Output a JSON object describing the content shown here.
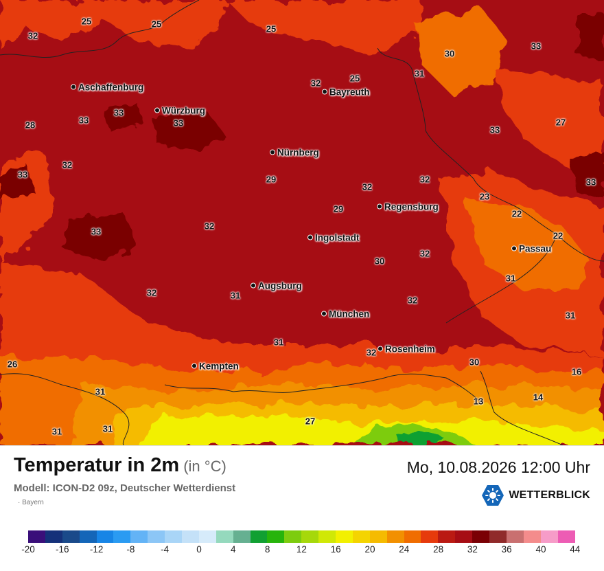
{
  "map": {
    "region": "Bayern",
    "cities": [
      {
        "name": "Aschaffenburg"
      },
      {
        "name": "Würzburg"
      },
      {
        "name": "Bayreuth"
      },
      {
        "name": "Nürnberg"
      },
      {
        "name": "Regensburg"
      },
      {
        "name": "Ingolstadt"
      },
      {
        "name": "Passau"
      },
      {
        "name": "Augsburg"
      },
      {
        "name": "München"
      },
      {
        "name": "Rosenheim"
      },
      {
        "name": "Kempten"
      }
    ],
    "values": [
      "32",
      "25",
      "25",
      "25",
      "30",
      "33",
      "32",
      "25",
      "31",
      "33",
      "33",
      "28",
      "33",
      "33",
      "27",
      "33",
      "32",
      "29",
      "32",
      "32",
      "33",
      "23",
      "29",
      "22",
      "33",
      "32",
      "22",
      "30",
      "32",
      "31",
      "32",
      "31",
      "32",
      "31",
      "31",
      "32",
      "30",
      "26",
      "16",
      "31",
      "14",
      "13",
      "27",
      "31",
      "31"
    ]
  },
  "footer": {
    "title": "Temperatur in 2m",
    "unit": "(in °C)",
    "model": "Modell: ICON-D2 09z, Deutscher Wetterdienst",
    "region_tag": "· Bayern",
    "datetime": "Mo, 10.08.2026 12:00 Uhr",
    "brand": "WETTERBLICK"
  },
  "legend": {
    "colors": [
      "#3a0f7a",
      "#15317a",
      "#1a4a8a",
      "#1466b8",
      "#1785e6",
      "#2a9bf2",
      "#63b3f6",
      "#8cc6f6",
      "#a9d5f7",
      "#c4e1f8",
      "#d6ebfa",
      "#95d9bd",
      "#66b091",
      "#11a032",
      "#27b40b",
      "#7dcc0f",
      "#a6d80b",
      "#d0e806",
      "#f2f000",
      "#f4d400",
      "#f5bb00",
      "#f29000",
      "#f06d00",
      "#e63a0c",
      "#ba1a12",
      "#a60d14",
      "#7a0004",
      "#902a2a",
      "#c97070",
      "#f48c8c",
      "#f69cc8",
      "#ed5cb4"
    ],
    "ticks": [
      "-20",
      "-16",
      "-12",
      "-8",
      "-4",
      "0",
      "4",
      "8",
      "12",
      "16",
      "20",
      "24",
      "28",
      "32",
      "36",
      "40",
      "44"
    ]
  }
}
